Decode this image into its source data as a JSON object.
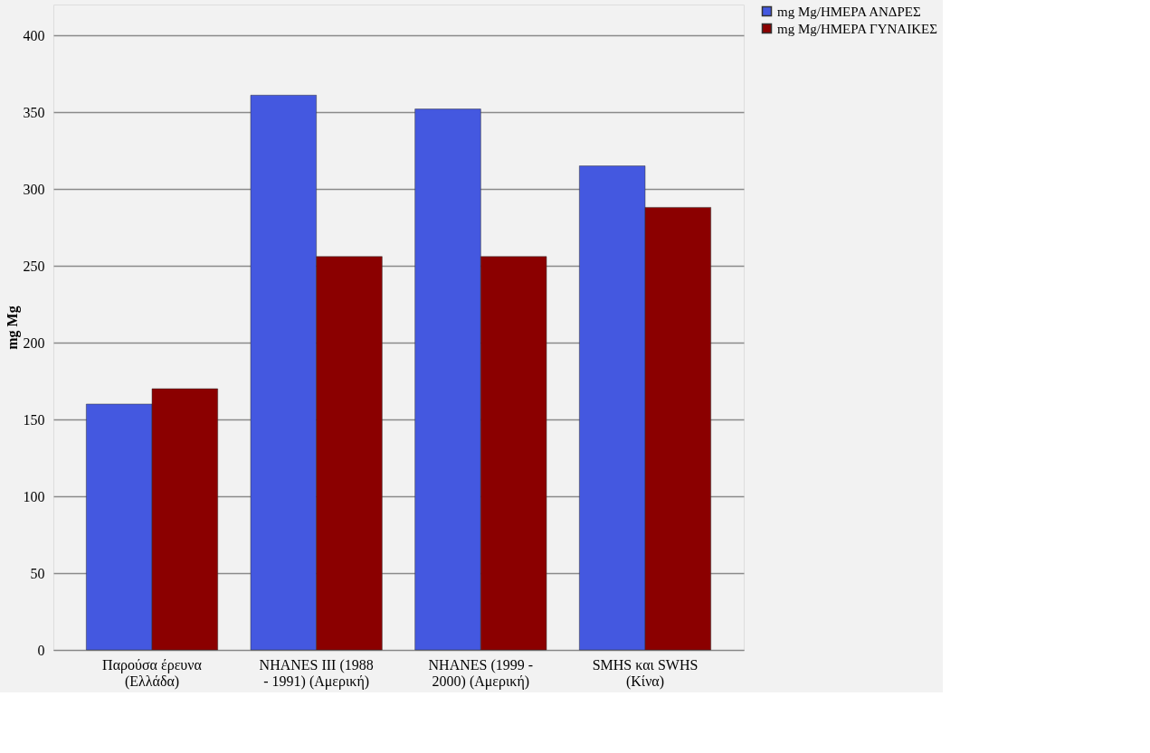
{
  "chart_data": {
    "type": "bar",
    "ylabel": "mg Mg",
    "categories": [
      "Παρούσα έρευνα (Ελλάδα)",
      "NHANES III (1988 - 1991) (Αμερική)",
      "NHANES (1999 - 2000) (Αμερική)",
      "SMHS και SWHS (Κίνα)"
    ],
    "series": [
      {
        "name": "mg Mg/ΗΜΕΡΑ ΑΝΔΡΕΣ",
        "color": "#4458e0",
        "values": [
          160,
          361,
          352,
          315
        ]
      },
      {
        "name": "mg Mg/ΗΜΕΡΑ ΓΥΝΑΙΚΕΣ",
        "color": "#8b0000",
        "values": [
          170,
          256,
          256,
          288
        ]
      }
    ],
    "ylim": [
      0,
      420
    ],
    "yticks": [
      0,
      50,
      100,
      150,
      200,
      250,
      300,
      350,
      400
    ],
    "grid": "y",
    "legend": "right"
  }
}
